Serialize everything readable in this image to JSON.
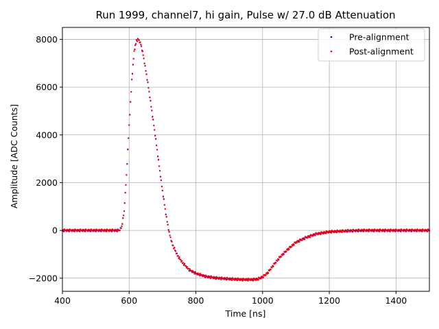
{
  "chart_data": {
    "type": "scatter",
    "title": "Run 1999, channel7, hi gain, Pulse w/ 27.0 dB Attenuation",
    "xlabel": "Time [ns]",
    "ylabel": "Amplitude [ADC Counts]",
    "xlim": [
      400,
      1500
    ],
    "ylim": [
      -2550,
      8500
    ],
    "xticks": [
      400,
      600,
      800,
      1000,
      1200,
      1400
    ],
    "yticks": [
      -2000,
      0,
      2000,
      4000,
      6000,
      8000
    ],
    "ytick_labels": [
      "−2000",
      "0",
      "2000",
      "4000",
      "6000",
      "8000"
    ],
    "grid": true,
    "legend_position": "top-right",
    "series": [
      {
        "name": "Pre-alignment",
        "color": "#0000ff",
        "x": [
          400,
          500,
          570,
          578,
          585,
          592,
          600,
          608,
          615,
          622,
          628,
          635,
          642,
          650,
          660,
          670,
          680,
          690,
          700,
          710,
          720,
          730,
          745,
          760,
          780,
          800,
          830,
          860,
          900,
          940,
          970,
          985,
          1000,
          1015,
          1030,
          1050,
          1075,
          1100,
          1130,
          1160,
          1200,
          1250,
          1300,
          1400,
          1500
        ],
        "y": [
          0,
          0,
          0,
          150,
          800,
          2300,
          4400,
          6300,
          7500,
          7950,
          8000,
          7800,
          7350,
          6700,
          5800,
          4800,
          3800,
          2700,
          1650,
          700,
          -100,
          -600,
          -1050,
          -1350,
          -1650,
          -1800,
          -1930,
          -1990,
          -2030,
          -2060,
          -2060,
          -2040,
          -1950,
          -1780,
          -1500,
          -1150,
          -800,
          -500,
          -300,
          -150,
          -60,
          -20,
          0,
          0,
          0
        ]
      },
      {
        "name": "Post-alignment",
        "color": "#ff0000",
        "x": [
          400,
          500,
          570,
          578,
          585,
          592,
          600,
          608,
          615,
          622,
          628,
          635,
          642,
          650,
          660,
          670,
          680,
          690,
          700,
          710,
          720,
          730,
          745,
          760,
          780,
          800,
          830,
          860,
          900,
          940,
          970,
          985,
          1000,
          1015,
          1030,
          1050,
          1075,
          1100,
          1130,
          1160,
          1200,
          1250,
          1300,
          1400,
          1500
        ],
        "y": [
          0,
          0,
          0,
          150,
          800,
          2300,
          4400,
          6300,
          7500,
          7950,
          8000,
          7800,
          7350,
          6700,
          5800,
          4800,
          3800,
          2700,
          1650,
          700,
          -100,
          -600,
          -1050,
          -1350,
          -1650,
          -1800,
          -1930,
          -1990,
          -2030,
          -2060,
          -2060,
          -2040,
          -1950,
          -1780,
          -1500,
          -1150,
          -800,
          -500,
          -300,
          -150,
          -60,
          -20,
          0,
          0,
          0
        ]
      }
    ]
  }
}
